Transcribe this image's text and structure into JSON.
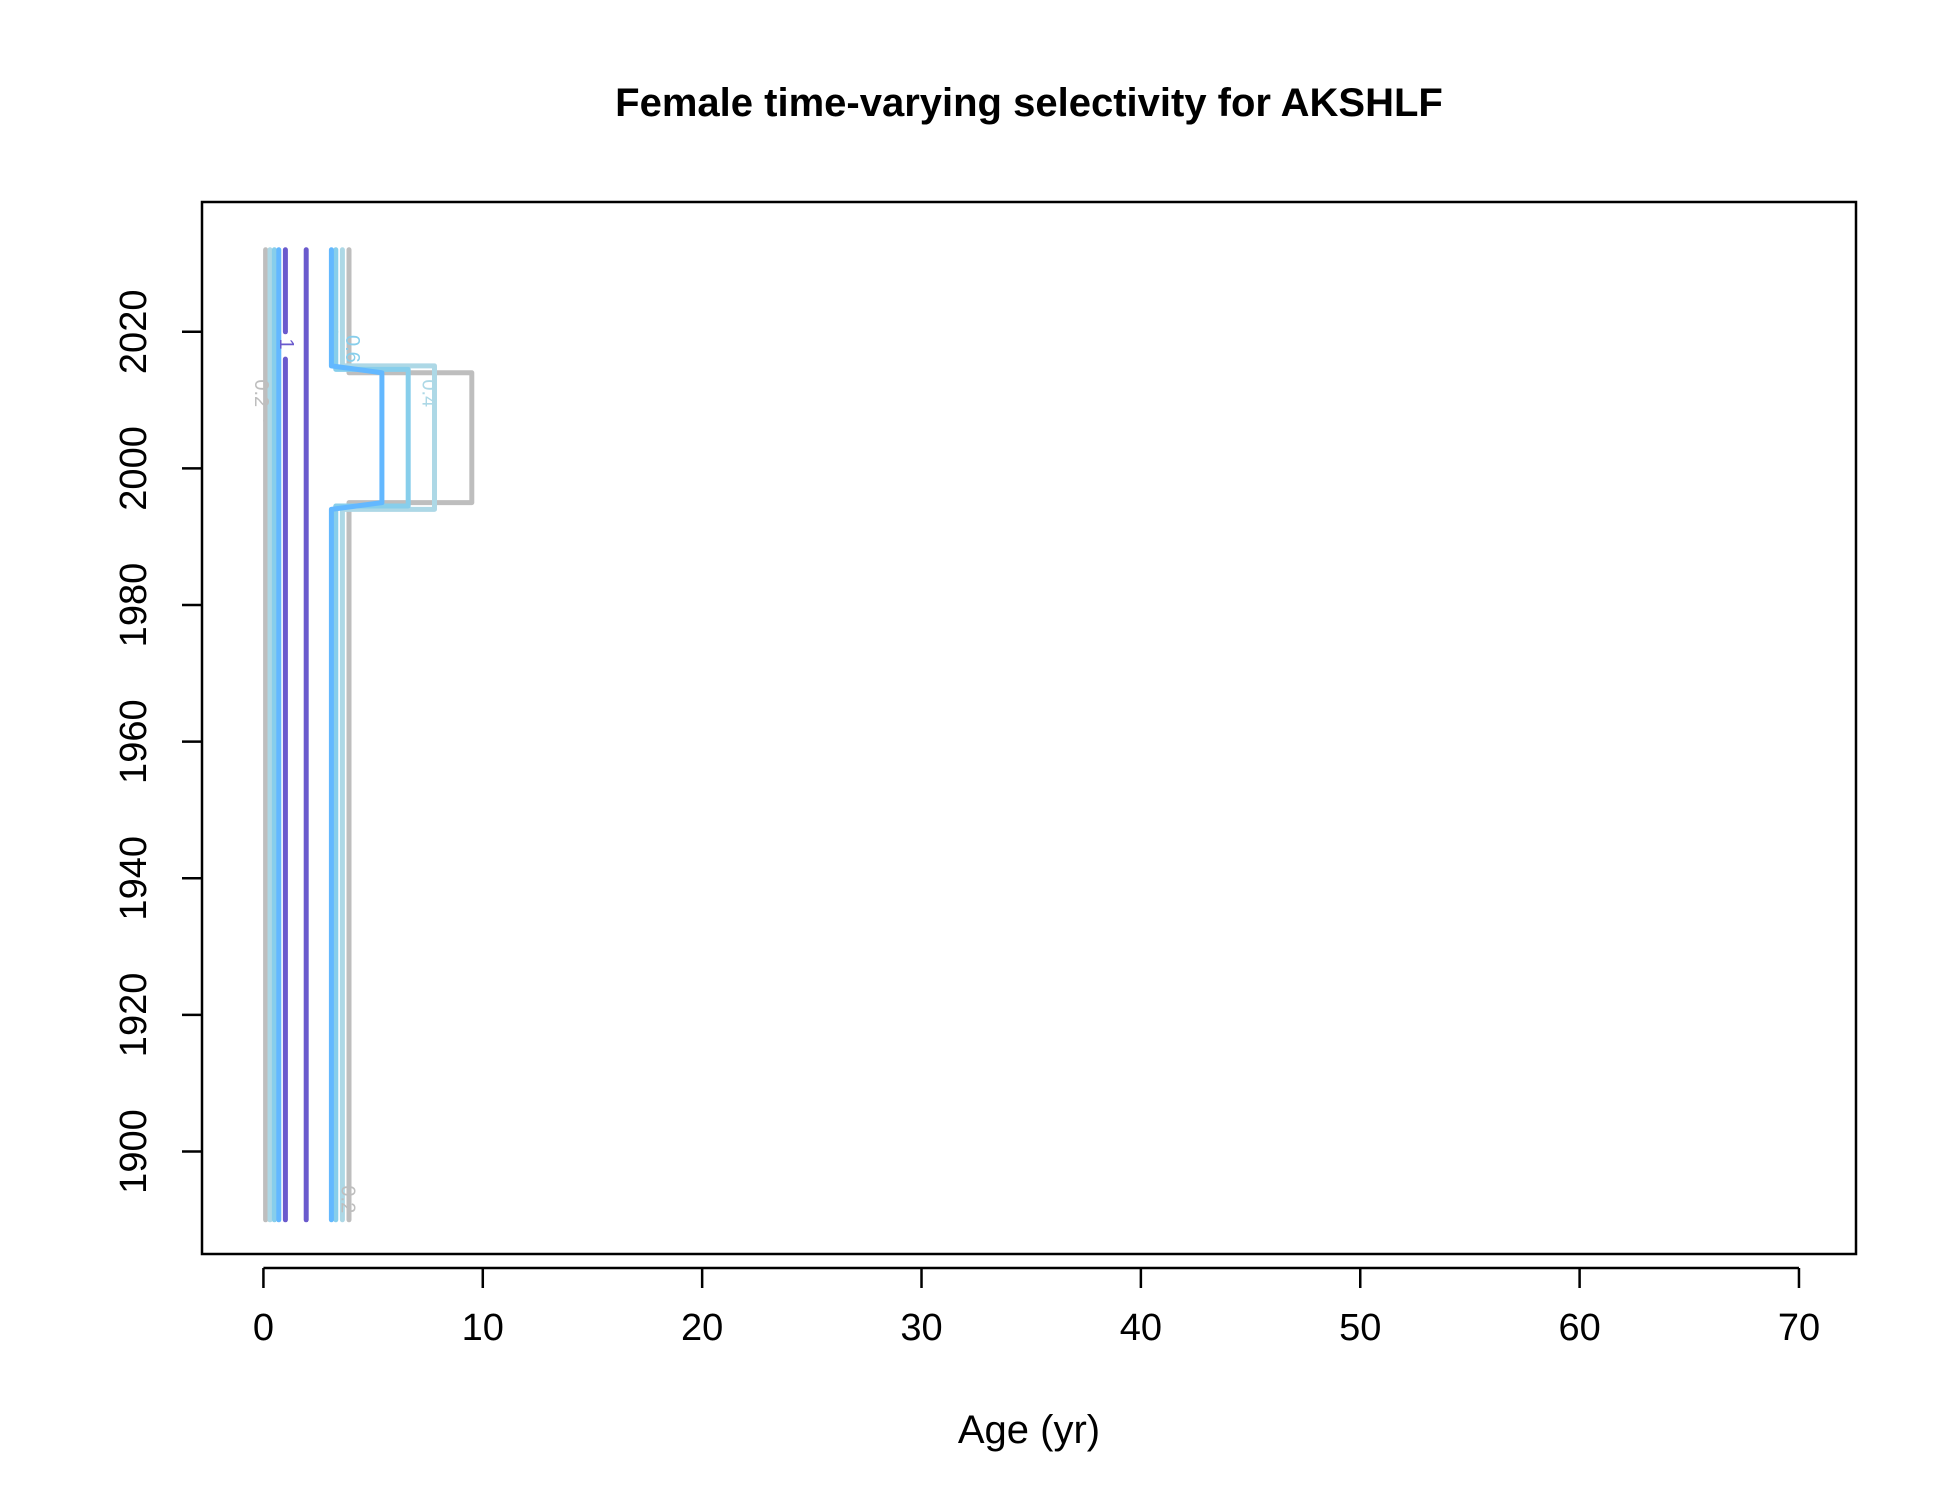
{
  "chart_data": {
    "type": "contour",
    "title": "Female time-varying selectivity for AKSHLF",
    "xlabel": "Age (yr)",
    "ylabel": "",
    "xlim": [
      -2.8,
      72.6
    ],
    "ylim": [
      1885,
      2039
    ],
    "xticks": [
      0,
      10,
      20,
      30,
      40,
      50,
      60,
      70
    ],
    "yticks": [
      1900,
      1920,
      1940,
      1960,
      1980,
      2000,
      2020
    ],
    "grid": false,
    "legend": "none",
    "year_range": [
      1890,
      2032
    ],
    "levels": [
      {
        "value": 0.2,
        "color": "#bebebe",
        "lines": [
          [
            [
              0.1,
              1890
            ],
            [
              0.1,
              2007
            ]
          ],
          [
            [
              0.1,
              2007
            ],
            [
              0.1,
              2032
            ]
          ],
          [
            [
              3.9,
              1890
            ],
            [
              3.9,
              1995
            ],
            [
              9.5,
              1995
            ],
            [
              9.5,
              2014
            ],
            [
              3.9,
              2014
            ],
            [
              3.9,
              2032
            ]
          ]
        ]
      },
      {
        "value": 0.4,
        "color": "#add8e6",
        "lines": [
          [
            [
              0.3,
              1890
            ],
            [
              0.3,
              2032
            ]
          ],
          [
            [
              3.6,
              1890
            ],
            [
              3.6,
              1994
            ],
            [
              7.8,
              1994
            ],
            [
              7.8,
              2007
            ]
          ],
          [
            [
              7.8,
              2007
            ],
            [
              7.8,
              2015
            ],
            [
              3.6,
              2015
            ],
            [
              3.6,
              2032
            ]
          ]
        ]
      },
      {
        "value": 0.6,
        "color": "#87ceeb",
        "lines": [
          [
            [
              0.5,
              1890
            ],
            [
              0.5,
              2032
            ]
          ],
          [
            [
              3.3,
              1890
            ],
            [
              3.3,
              1994.5
            ],
            [
              6.6,
              1994.5
            ],
            [
              6.6,
              2014.5
            ],
            [
              3.3,
              2014.5
            ],
            [
              3.3,
              2020
            ]
          ],
          [
            [
              3.3,
              2020
            ],
            [
              3.3,
              2032
            ]
          ]
        ]
      },
      {
        "value": 0.8,
        "color": "#63b8ff",
        "lines": [
          [
            [
              0.7,
              1890
            ],
            [
              0.7,
              2032
            ]
          ],
          [
            [
              3.1,
              1890
            ],
            [
              3.1,
              1994
            ],
            [
              5.4,
              1995
            ],
            [
              5.4,
              2014
            ],
            [
              3.1,
              2015
            ],
            [
              3.1,
              2032
            ]
          ]
        ]
      },
      {
        "value": 1,
        "color": "#6a5acd",
        "lines": [
          [
            [
              1.0,
              1890
            ],
            [
              1.0,
              2016
            ]
          ],
          [
            [
              1.0,
              2020
            ],
            [
              1.0,
              2032
            ]
          ],
          [
            [
              1.95,
              1890
            ],
            [
              1.95,
              2032
            ]
          ]
        ]
      }
    ],
    "contour_labels": [
      {
        "text": "0.2",
        "x": -0.15,
        "y": 2011,
        "color": "#bebebe"
      },
      {
        "text": "1",
        "x": 1.0,
        "y": 2018.2,
        "color": "#6a5acd"
      },
      {
        "text": "0.6",
        "x": 4.0,
        "y": 2017.5,
        "color": "#87ceeb"
      },
      {
        "text": "0.4",
        "x": 7.5,
        "y": 2011,
        "color": "#add8e6"
      },
      {
        "text": "0.2",
        "x": 3.8,
        "y": 1893,
        "color": "#bebebe"
      }
    ]
  }
}
